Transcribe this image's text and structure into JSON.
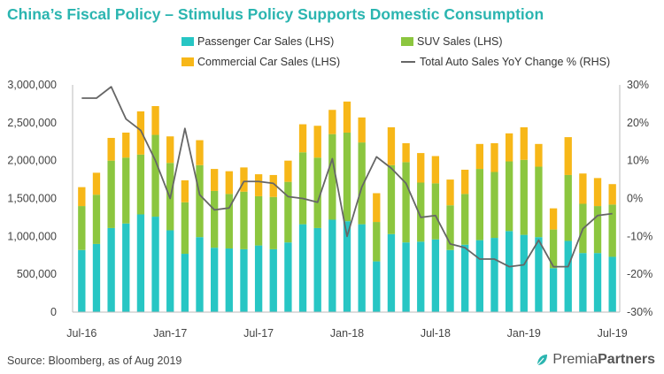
{
  "colors": {
    "title": "#2bb5b0",
    "passenger": "#27c6c4",
    "suv": "#8cc63f",
    "commercial": "#f7b718",
    "line": "#666666",
    "axis": "#bbbbbb"
  },
  "page": {
    "title": "China’s Fiscal Policy – Stimulus Policy Supports Domestic Consumption",
    "source": "Source: Bloomberg, as of Aug 2019",
    "logo_text": "PremiaPartners",
    "logo_icon": "premia-leaf-icon"
  },
  "chart_data": {
    "type": "bar",
    "stacked": true,
    "title": "China’s Fiscal Policy – Stimulus Policy Supports Domestic Consumption",
    "x_tick_labels": [
      "Jul-16",
      "Jan-17",
      "Jul-17",
      "Jan-18",
      "Jul-18",
      "Jan-19",
      "Jul-19"
    ],
    "x_tick_indices": [
      0,
      6,
      12,
      18,
      24,
      30,
      36
    ],
    "categories": [
      "Jul-16",
      "Aug-16",
      "Sep-16",
      "Oct-16",
      "Nov-16",
      "Dec-16",
      "Jan-17",
      "Feb-17",
      "Mar-17",
      "Apr-17",
      "May-17",
      "Jun-17",
      "Jul-17",
      "Aug-17",
      "Sep-17",
      "Oct-17",
      "Nov-17",
      "Dec-17",
      "Jan-18",
      "Feb-18",
      "Mar-18",
      "Apr-18",
      "May-18",
      "Jun-18",
      "Jul-18",
      "Aug-18",
      "Sep-18",
      "Oct-18",
      "Nov-18",
      "Dec-18",
      "Jan-19",
      "Feb-19",
      "Mar-19",
      "Apr-19",
      "May-19",
      "Jun-19",
      "Jul-19"
    ],
    "left_axis": {
      "min": 0,
      "max": 3000000,
      "step": 500000,
      "tick_labels": [
        "0",
        "500,000",
        "1,000,000",
        "1,500,000",
        "2,000,000",
        "2,500,000",
        "3,000,000"
      ]
    },
    "right_axis": {
      "min": -30,
      "max": 30,
      "step": 10,
      "tick_labels": [
        "-30%",
        "-20%",
        "-10%",
        "0%",
        "10%",
        "20%",
        "30%"
      ]
    },
    "series": [
      {
        "name": "Passenger Car Sales (LHS)",
        "axis": "left",
        "kind": "bar",
        "values": [
          820000,
          900000,
          1110000,
          1170000,
          1290000,
          1260000,
          1080000,
          770000,
          990000,
          850000,
          840000,
          830000,
          880000,
          830000,
          920000,
          1160000,
          1110000,
          1220000,
          1200000,
          1160000,
          670000,
          1030000,
          920000,
          930000,
          960000,
          820000,
          890000,
          950000,
          980000,
          1070000,
          1020000,
          990000,
          580000,
          940000,
          780000,
          780000,
          730000
        ]
      },
      {
        "name": "SUV Sales (LHS)",
        "axis": "left",
        "kind": "bar",
        "values": [
          580000,
          650000,
          890000,
          870000,
          790000,
          1080000,
          890000,
          680000,
          950000,
          750000,
          720000,
          760000,
          650000,
          690000,
          800000,
          950000,
          930000,
          1130000,
          1170000,
          1080000,
          520000,
          910000,
          1060000,
          780000,
          740000,
          590000,
          670000,
          940000,
          870000,
          920000,
          990000,
          930000,
          510000,
          870000,
          650000,
          620000,
          690000
        ]
      },
      {
        "name": "Commercial Car Sales (LHS)",
        "axis": "left",
        "kind": "bar",
        "values": [
          250000,
          290000,
          300000,
          330000,
          570000,
          380000,
          350000,
          290000,
          330000,
          290000,
          300000,
          320000,
          290000,
          290000,
          280000,
          370000,
          420000,
          320000,
          410000,
          330000,
          380000,
          500000,
          250000,
          390000,
          360000,
          340000,
          320000,
          330000,
          380000,
          370000,
          430000,
          300000,
          280000,
          500000,
          400000,
          370000,
          270000
        ]
      },
      {
        "name": "Total Auto Sales YoY Change % (RHS)",
        "axis": "right",
        "kind": "line",
        "values": [
          26.5,
          26.5,
          29.5,
          21,
          18,
          10,
          0,
          18.5,
          1,
          -3,
          -2.5,
          4.5,
          4.5,
          4,
          0.5,
          0,
          -1,
          10.5,
          -10,
          3,
          11,
          8,
          4,
          -5,
          -4.5,
          -12,
          -13,
          -16,
          -16,
          -18,
          -17.5,
          -11,
          -18,
          -18,
          -8,
          -4.5,
          -4
        ]
      }
    ],
    "legend": {
      "placement": "top",
      "entries": [
        "Passenger Car Sales (LHS)",
        "SUV Sales (LHS)",
        "Commercial Car Sales (LHS)",
        "Total Auto Sales YoY Change % (RHS)"
      ]
    },
    "grid": false
  }
}
